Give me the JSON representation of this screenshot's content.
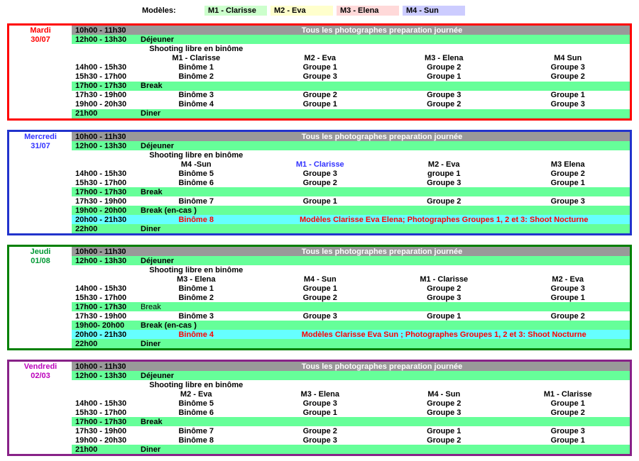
{
  "legend": {
    "label": "Modèles:",
    "items": [
      {
        "label": "M1 - Clarisse",
        "color": "#CCFFCC"
      },
      {
        "label": "M2 - Eva",
        "color": "#FFFFCC"
      },
      {
        "label": "M3 - Elena",
        "color": "#FFD9D9"
      },
      {
        "label": "M4 - Sun",
        "color": "#CCCCFF"
      }
    ]
  },
  "colors": {
    "row_green": "#66FF99",
    "row_gray": "#999999",
    "row_cyan": "#66FFFF",
    "highlight_red": "#FF0000"
  },
  "days": [
    {
      "name": "Mardi",
      "date": "30/07",
      "accent": "#FF0000",
      "border": "#FF0000",
      "rows": [
        {
          "type": "band",
          "time": "10h00 - 11h30",
          "text": "Tous les photographes preparation journée",
          "bg": "gray"
        },
        {
          "type": "meal",
          "time": "12h00 - 13h30",
          "text": "Déjeuner",
          "bg": "green"
        },
        {
          "type": "label",
          "text": "Shooting libre en binôme"
        },
        {
          "type": "heads",
          "cells": [
            "M1 - Clarisse",
            "M2 - Eva",
            "M3 - Elena",
            "M4 Sun"
          ]
        },
        {
          "type": "cells",
          "time": "14h00 - 15h30",
          "cells": [
            "Binôme 1",
            "Groupe 1",
            "Groupe 2",
            "Groupe 3"
          ]
        },
        {
          "type": "cells",
          "time": "15h30 - 17h00",
          "cells": [
            "Binôme 2",
            "Groupe 3",
            "Groupe 1",
            "Groupe 2"
          ]
        },
        {
          "type": "meal",
          "time": "17h00 - 17h30",
          "text": "Break",
          "bg": "green"
        },
        {
          "type": "cells",
          "time": "17h30 - 19h00",
          "cells": [
            "Binôme 3",
            "Groupe 2",
            "Groupe 3",
            "Groupe 1"
          ]
        },
        {
          "type": "cells",
          "time": "19h00 - 20h30",
          "cells": [
            "Binôme 4",
            "Groupe 1",
            "Groupe 2",
            "Groupe 3"
          ]
        },
        {
          "type": "meal",
          "time": "21h00",
          "text": "Diner",
          "bg": "green"
        }
      ]
    },
    {
      "name": "Mercredi",
      "date": "31/07",
      "accent": "#3333FF",
      "border": "#2233CC",
      "rows": [
        {
          "type": "band",
          "time": "10h00 - 11h30",
          "text": "Tous les photographes preparation journée",
          "bg": "gray"
        },
        {
          "type": "meal",
          "time": "12h00 - 13h30",
          "text": "Déjeuner",
          "bg": "green"
        },
        {
          "type": "label",
          "text": "Shooting libre en binôme"
        },
        {
          "type": "heads",
          "cells": [
            "M4 -Sun",
            "M1 - Clarisse",
            "M2 - Eva",
            "M3 Elena"
          ],
          "accents": [
            null,
            "#3333FF",
            null,
            null
          ]
        },
        {
          "type": "cells",
          "time": "14h00 - 15h30",
          "cells": [
            "Binôme 5",
            "Groupe 3",
            "groupe 1",
            "Groupe 2"
          ]
        },
        {
          "type": "cells",
          "time": "15h30 - 17h00",
          "cells": [
            "Binôme 6",
            "Groupe 2",
            "Groupe 3",
            "Groupe 1"
          ]
        },
        {
          "type": "meal",
          "time": "17h00 - 17h30",
          "text": "Break",
          "bg": "green"
        },
        {
          "type": "cells",
          "time": "17h30 - 19h00",
          "cells": [
            "Binôme 7",
            "Groupe 1",
            "Groupe 2",
            "Groupe 3"
          ]
        },
        {
          "type": "meal",
          "time": "19h00 - 20h00",
          "text": "Break (en-cas )",
          "bg": "green"
        },
        {
          "type": "nocturne",
          "time": "20h00 - 21h30",
          "binome": "Binôme 8",
          "text": "Modèles  Clarisse Eva Elena;  Photographes Groupes 1, 2 et 3:  Shoot Nocturne",
          "bg": "cyan"
        },
        {
          "type": "meal",
          "time": "22h00",
          "text": "Diner",
          "bg": "green"
        }
      ]
    },
    {
      "name": "Jeudi",
      "date": "01/08",
      "accent": "#009933",
      "border": "#008000",
      "rows": [
        {
          "type": "band",
          "time": "10h00 - 11h30",
          "text": "Tous les photographes preparation journée",
          "bg": "gray"
        },
        {
          "type": "meal",
          "time": "12h00 - 13h30",
          "text": "Déjeuner",
          "bg": "green"
        },
        {
          "type": "label",
          "text": "Shooting libre en binôme"
        },
        {
          "type": "heads",
          "cells": [
            "M3 - Elena",
            "M4 - Sun",
            "M1 - Clarisse",
            "M2 - Eva"
          ]
        },
        {
          "type": "cells",
          "time": "14h00 - 15h30",
          "cells": [
            "Binôme 1",
            "Groupe 1",
            "Groupe 2",
            "Groupe 3"
          ]
        },
        {
          "type": "cells",
          "time": "15h30 - 17h00",
          "cells": [
            "Binôme 2",
            "Groupe 2",
            "Groupe 3",
            "Groupe 1"
          ]
        },
        {
          "type": "meal",
          "time": "17h00 - 17h30",
          "text": "Break",
          "bg": "green",
          "light": true
        },
        {
          "type": "cells",
          "time": "17h30 - 19h00",
          "cells": [
            "Binôme 3",
            "Groupe 3",
            "Groupe 1",
            "Groupe 2"
          ]
        },
        {
          "type": "meal",
          "time": "19h00- 20h00",
          "text": "Break (en-cas )",
          "bg": "green"
        },
        {
          "type": "nocturne",
          "time": "20h00 - 21h30",
          "binome": "Binôme 4",
          "text": "Modèles  Clarisse Eva Sun ;  Photographes Groupes 1, 2 et 3:  Shoot Nocturne",
          "bg": "cyan"
        },
        {
          "type": "meal",
          "time": "22h00",
          "text": "Diner",
          "bg": "green"
        }
      ]
    },
    {
      "name": "Vendredi",
      "date": "02/03",
      "accent": "#BB00BB",
      "border": "#882288",
      "rows": [
        {
          "type": "band",
          "time": "10h00 - 11h30",
          "text": "Tous les photographes preparation journée",
          "bg": "gray"
        },
        {
          "type": "meal",
          "time": "12h00 - 13h30",
          "text": "Déjeuner",
          "bg": "green"
        },
        {
          "type": "label",
          "text": "Shooting libre en binôme"
        },
        {
          "type": "heads",
          "cells": [
            "M2 - Eva",
            "M3 - Elena",
            "M4 - Sun",
            "M1 - Clarisse"
          ]
        },
        {
          "type": "cells",
          "time": "14h00 - 15h30",
          "cells": [
            "Binôme 5",
            "Groupe 3",
            "Groupe 2",
            "Groupe 1"
          ]
        },
        {
          "type": "cells",
          "time": "15h30 - 17h00",
          "cells": [
            "Binôme 6",
            "Groupe 1",
            "Groupe 3",
            "Groupe 2"
          ]
        },
        {
          "type": "meal",
          "time": "17h00 - 17h30",
          "text": "Break",
          "bg": "green"
        },
        {
          "type": "cells",
          "time": "17h30 - 19h00",
          "cells": [
            "Binôme 7",
            "Groupe 2",
            "Groupe 1",
            "Groupe 3"
          ]
        },
        {
          "type": "cells",
          "time": "19h00 - 20h30",
          "cells": [
            "Binôme 8",
            "Groupe 3",
            "Groupe 2",
            "Groupe 1"
          ]
        },
        {
          "type": "meal",
          "time": "21h00",
          "text": "Diner",
          "bg": "green"
        }
      ]
    }
  ]
}
